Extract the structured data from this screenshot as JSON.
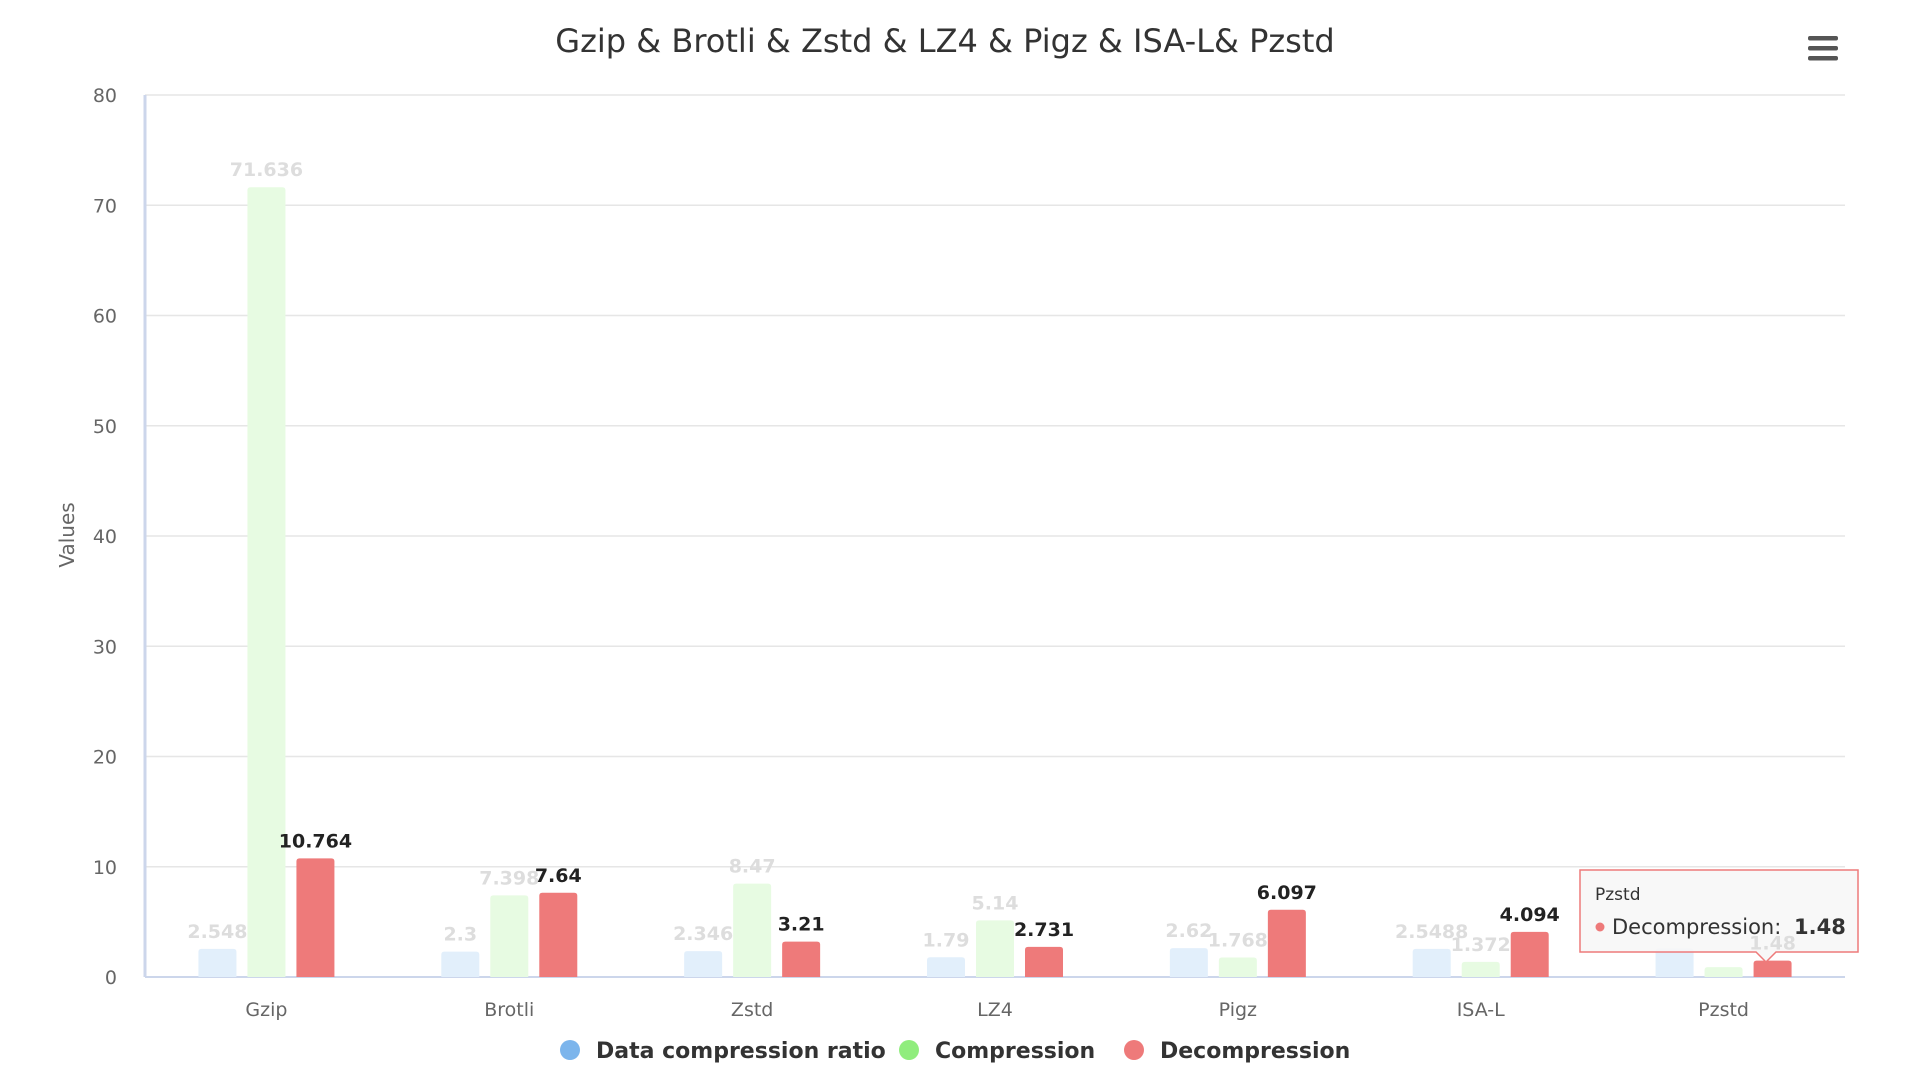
{
  "chart_data": {
    "type": "bar",
    "title": "Gzip & Brotli & Zstd & LZ4 & Pigz & ISA-L& Pzstd",
    "ylabel": "Values",
    "xlabel": "",
    "ylim": [
      0,
      80
    ],
    "yticks": [
      0,
      10,
      20,
      30,
      40,
      50,
      60,
      70,
      80
    ],
    "grid": true,
    "legend_position": "bottom-center",
    "categories": [
      "Gzip",
      "Brotli",
      "Zstd",
      "LZ4",
      "Pigz",
      "ISA-L",
      "Pzstd"
    ],
    "series": [
      {
        "name": "Data compression ratio",
        "color": "#7cb5ec",
        "dimmed": true,
        "values": [
          2.548,
          2.3,
          2.346,
          1.79,
          2.62,
          2.5488,
          2.6
        ],
        "labels": [
          "2.548",
          "2.3",
          "2.346",
          "1.79",
          "2.62",
          "2.5488",
          ""
        ]
      },
      {
        "name": "Compression",
        "color": "#90ed7d",
        "dimmed": true,
        "values": [
          71.636,
          7.398,
          8.47,
          5.14,
          1.768,
          1.372,
          0.9
        ],
        "labels": [
          "71.636",
          "7.398",
          "8.47",
          "5.14",
          "1.768",
          "1.372",
          ""
        ]
      },
      {
        "name": "Decompression",
        "color": "#ee7a7a",
        "dimmed": false,
        "values": [
          10.764,
          7.64,
          3.21,
          2.731,
          6.097,
          4.094,
          1.48
        ],
        "labels": [
          "10.764",
          "7.64",
          "3.21",
          "2.731",
          "6.097",
          "4.094",
          "1.48"
        ]
      }
    ],
    "tooltip": {
      "category": "Pzstd",
      "series_label": "Decompression:",
      "value": "1.48",
      "color": "#ee7a7a"
    }
  },
  "menu": {
    "icon": "hamburger-menu-icon"
  }
}
